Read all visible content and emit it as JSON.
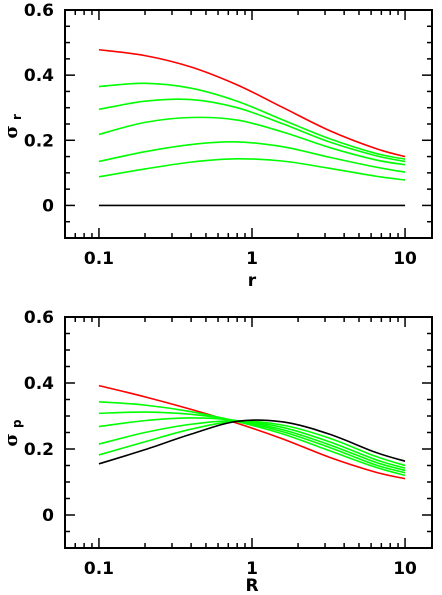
{
  "chart_data": [
    {
      "type": "line",
      "title": "",
      "xlabel": "r",
      "ylabel": "σ",
      "ylabel_subscript": "r",
      "xscale": "log",
      "xlim": [
        0.06,
        15
      ],
      "ylim": [
        -0.1,
        0.6
      ],
      "xticks": [
        0.1,
        1,
        10
      ],
      "xtick_labels": [
        "0.1",
        "1",
        "10"
      ],
      "yticks": [
        0,
        0.2,
        0.4,
        0.6
      ],
      "ytick_labels": [
        "0",
        "0.2",
        "0.4",
        "0.6"
      ],
      "grid": false,
      "x": [
        0.1,
        0.2,
        0.4,
        0.8,
        1.6,
        3.2,
        6.4,
        10
      ],
      "series": [
        {
          "color": "#ff0000",
          "values": [
            0.478,
            0.46,
            0.425,
            0.37,
            0.3,
            0.23,
            0.175,
            0.15
          ]
        },
        {
          "color": "#00ff00",
          "values": [
            0.365,
            0.375,
            0.36,
            0.32,
            0.262,
            0.205,
            0.16,
            0.142
          ]
        },
        {
          "color": "#00ff00",
          "values": [
            0.295,
            0.32,
            0.325,
            0.3,
            0.25,
            0.195,
            0.153,
            0.135
          ]
        },
        {
          "color": "#00ff00",
          "values": [
            0.218,
            0.255,
            0.27,
            0.262,
            0.225,
            0.178,
            0.14,
            0.125
          ]
        },
        {
          "color": "#00ff00",
          "values": [
            0.135,
            0.165,
            0.187,
            0.195,
            0.18,
            0.148,
            0.118,
            0.102
          ]
        },
        {
          "color": "#00ff00",
          "values": [
            0.088,
            0.112,
            0.133,
            0.143,
            0.136,
            0.114,
            0.09,
            0.078
          ]
        },
        {
          "color": "#000000",
          "values": [
            0,
            0,
            0,
            0,
            0,
            0,
            0,
            0
          ]
        }
      ]
    },
    {
      "type": "line",
      "title": "",
      "xlabel": "R",
      "ylabel": "σ",
      "ylabel_subscript": "p",
      "xscale": "log",
      "xlim": [
        0.06,
        15
      ],
      "ylim": [
        -0.1,
        0.6
      ],
      "xticks": [
        0.1,
        1,
        10
      ],
      "xtick_labels": [
        "0.1",
        "1",
        "10"
      ],
      "yticks": [
        0,
        0.2,
        0.4,
        0.6
      ],
      "ytick_labels": [
        "0",
        "0.2",
        "0.4",
        "0.6"
      ],
      "grid": false,
      "x": [
        0.1,
        0.2,
        0.4,
        0.8,
        1.6,
        3.2,
        6.4,
        10
      ],
      "series": [
        {
          "color": "#ff0000",
          "values": [
            0.392,
            0.358,
            0.32,
            0.278,
            0.23,
            0.175,
            0.13,
            0.11
          ]
        },
        {
          "color": "#00ff00",
          "values": [
            0.343,
            0.333,
            0.313,
            0.283,
            0.245,
            0.195,
            0.145,
            0.12
          ]
        },
        {
          "color": "#00ff00",
          "values": [
            0.308,
            0.312,
            0.305,
            0.285,
            0.252,
            0.205,
            0.152,
            0.128
          ]
        },
        {
          "color": "#00ff00",
          "values": [
            0.268,
            0.286,
            0.294,
            0.286,
            0.258,
            0.213,
            0.16,
            0.135
          ]
        },
        {
          "color": "#00ff00",
          "values": [
            0.215,
            0.25,
            0.275,
            0.285,
            0.265,
            0.222,
            0.168,
            0.142
          ]
        },
        {
          "color": "#00ff00",
          "values": [
            0.182,
            0.222,
            0.26,
            0.284,
            0.272,
            0.233,
            0.178,
            0.15
          ]
        },
        {
          "color": "#000000",
          "values": [
            0.155,
            0.198,
            0.245,
            0.284,
            0.282,
            0.245,
            0.19,
            0.163
          ]
        }
      ]
    }
  ]
}
